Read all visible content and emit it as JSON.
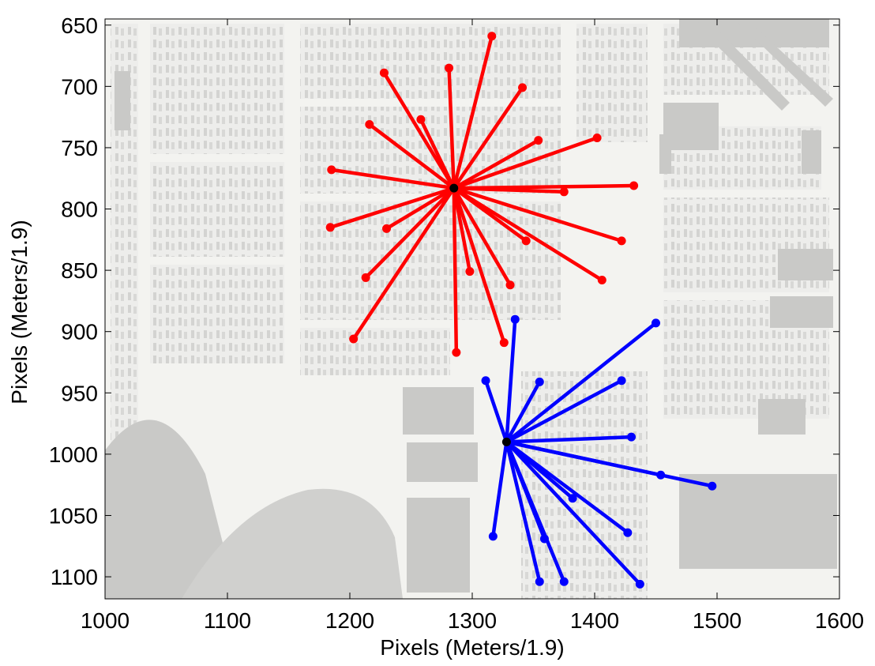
{
  "chart_data": {
    "type": "scatter",
    "xlabel": "Pixels (Meters/1.9)",
    "ylabel": "Pixels (Meters/1.9)",
    "xlim": [
      1000,
      1600
    ],
    "ylim": [
      1118,
      645
    ],
    "y_reversed": true,
    "grid": false,
    "background": "grayscale aerial image of city blocks",
    "x_ticks": [
      "1000",
      "1100",
      "1200",
      "1300",
      "1400",
      "1500",
      "1600"
    ],
    "y_ticks": [
      "650",
      "700",
      "750",
      "800",
      "850",
      "900",
      "950",
      "1000",
      "1050",
      "1100"
    ],
    "x_tick_values": [
      1000,
      1100,
      1200,
      1300,
      1400,
      1500,
      1600
    ],
    "y_tick_values": [
      650,
      700,
      750,
      800,
      850,
      900,
      950,
      1000,
      1050,
      1100
    ],
    "series": [
      {
        "color": "#ff0000",
        "hub": {
          "x": 1285,
          "y": 783
        },
        "hub_color": "#000000",
        "points": [
          {
            "x": 1316,
            "y": 659
          },
          {
            "x": 1228,
            "y": 689
          },
          {
            "x": 1281,
            "y": 685
          },
          {
            "x": 1341,
            "y": 701
          },
          {
            "x": 1258,
            "y": 727
          },
          {
            "x": 1216,
            "y": 731
          },
          {
            "x": 1354,
            "y": 744
          },
          {
            "x": 1402,
            "y": 742
          },
          {
            "x": 1185,
            "y": 768
          },
          {
            "x": 1432,
            "y": 781
          },
          {
            "x": 1375,
            "y": 786
          },
          {
            "x": 1184,
            "y": 815
          },
          {
            "x": 1230,
            "y": 816
          },
          {
            "x": 1344,
            "y": 826
          },
          {
            "x": 1422,
            "y": 826
          },
          {
            "x": 1298,
            "y": 851
          },
          {
            "x": 1213,
            "y": 856
          },
          {
            "x": 1406,
            "y": 858
          },
          {
            "x": 1331,
            "y": 862
          },
          {
            "x": 1203,
            "y": 906
          },
          {
            "x": 1326,
            "y": 909
          },
          {
            "x": 1287,
            "y": 917
          }
        ]
      },
      {
        "color": "#0000ff",
        "hub": {
          "x": 1328,
          "y": 990
        },
        "hub_color": "#000000",
        "points": [
          {
            "x": 1335,
            "y": 890
          },
          {
            "x": 1450,
            "y": 893
          },
          {
            "x": 1311,
            "y": 940
          },
          {
            "x": 1355,
            "y": 941
          },
          {
            "x": 1422,
            "y": 940
          },
          {
            "x": 1430,
            "y": 986
          },
          {
            "x": 1454,
            "y": 1017
          },
          {
            "x": 1496,
            "y": 1026
          },
          {
            "x": 1382,
            "y": 1036
          },
          {
            "x": 1427,
            "y": 1064
          },
          {
            "x": 1317,
            "y": 1067
          },
          {
            "x": 1359,
            "y": 1069
          },
          {
            "x": 1355,
            "y": 1104
          },
          {
            "x": 1375,
            "y": 1104
          },
          {
            "x": 1437,
            "y": 1106
          }
        ]
      }
    ]
  }
}
